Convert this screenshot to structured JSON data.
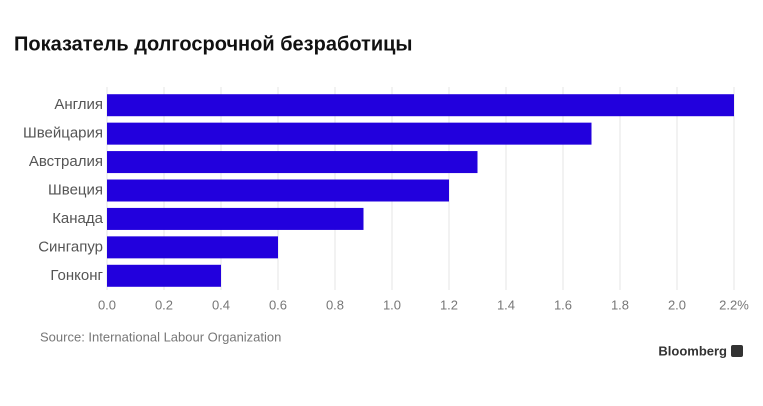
{
  "chart_data": {
    "type": "bar",
    "orientation": "horizontal",
    "title": "Показатель долгосрочной безработицы",
    "categories": [
      "Англия",
      "Швейцария",
      "Австралия",
      "Швеция",
      "Канада",
      "Сингапур",
      "Гонконг"
    ],
    "values": [
      2.2,
      1.7,
      1.3,
      1.2,
      0.9,
      0.6,
      0.4
    ],
    "color": "#2200dd",
    "xlim": [
      0,
      2.2
    ],
    "xticks": [
      {
        "value": 0,
        "label": "0.0"
      },
      {
        "value": 0.2,
        "label": "0.2"
      },
      {
        "value": 0.4,
        "label": "0.4"
      },
      {
        "value": 0.6,
        "label": "0.6"
      },
      {
        "value": 0.8,
        "label": "0.8"
      },
      {
        "value": 1,
        "label": "1.0"
      },
      {
        "value": 1.2,
        "label": "1.2"
      },
      {
        "value": 1.4,
        "label": "1.4"
      },
      {
        "value": 1.6,
        "label": "1.6"
      },
      {
        "value": 1.8,
        "label": "1.8"
      },
      {
        "value": 2,
        "label": "2.0"
      },
      {
        "value": 2.2,
        "label": "2.2%"
      }
    ],
    "grid": true,
    "source": "Source: International Labour Organization",
    "brand": "Bloomberg"
  }
}
